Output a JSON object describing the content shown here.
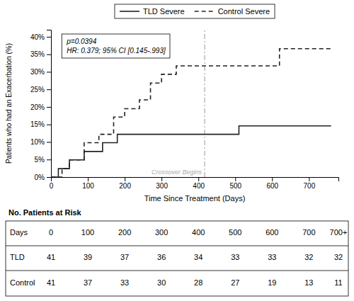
{
  "chart_data": {
    "type": "step",
    "xlabel": "Time Since Treatment (Days)",
    "ylabel": "Patients who had an Exacerbation (%)",
    "xlim": [
      0,
      780
    ],
    "ylim": [
      0,
      42
    ],
    "xticks": [
      0,
      100,
      200,
      300,
      400,
      500,
      600,
      700
    ],
    "yticks": [
      {
        "value": 0,
        "label": "0%"
      },
      {
        "value": 5,
        "label": "5%"
      },
      {
        "value": 10,
        "label": "10%"
      },
      {
        "value": 15,
        "label": "15%"
      },
      {
        "value": 20,
        "label": "20%"
      },
      {
        "value": 25,
        "label": "25%"
      },
      {
        "value": 30,
        "label": "30%"
      },
      {
        "value": 35,
        "label": "35%"
      },
      {
        "value": 40,
        "label": "40%"
      }
    ],
    "grid": false,
    "legend": "top",
    "series": [
      {
        "name": "TLD Severe",
        "color": "#222222",
        "line_style": "solid",
        "x": [
          0,
          20,
          50,
          90,
          140,
          180,
          430,
          510,
          760
        ],
        "values": [
          0,
          2.4,
          4.9,
          7.3,
          9.8,
          12.2,
          12.2,
          14.6,
          14.6
        ]
      },
      {
        "name": "Control Severe",
        "color": "#222222",
        "line_style": "dashed",
        "x": [
          0,
          30,
          50,
          90,
          130,
          170,
          200,
          240,
          270,
          300,
          340,
          400,
          430,
          590,
          620,
          760
        ],
        "values": [
          0,
          2.4,
          4.9,
          9.8,
          12.2,
          17.1,
          19.5,
          22.0,
          26.8,
          29.3,
          31.7,
          31.7,
          31.7,
          31.7,
          36.6,
          36.6
        ]
      }
    ],
    "vlines": [
      {
        "x": 417,
        "label": "Crossover Begins",
        "color": "#aaaaaa",
        "line_style": "dashdot"
      }
    ],
    "annotations": [
      "p=0.0394",
      "HR: 0.379; 95% CI [0.145-.993]"
    ],
    "table": {
      "title": "No. Patients at Risk",
      "columns": [
        "Days",
        "0",
        "100",
        "200",
        "300",
        "400",
        "500",
        "600",
        "700",
        "700+"
      ],
      "rows": [
        {
          "name": "TLD",
          "values": [
            41,
            39,
            37,
            36,
            34,
            33,
            33,
            32,
            32
          ]
        },
        {
          "name": "Control",
          "values": [
            41,
            37,
            33,
            30,
            28,
            27,
            19,
            13,
            11
          ]
        }
      ]
    }
  }
}
